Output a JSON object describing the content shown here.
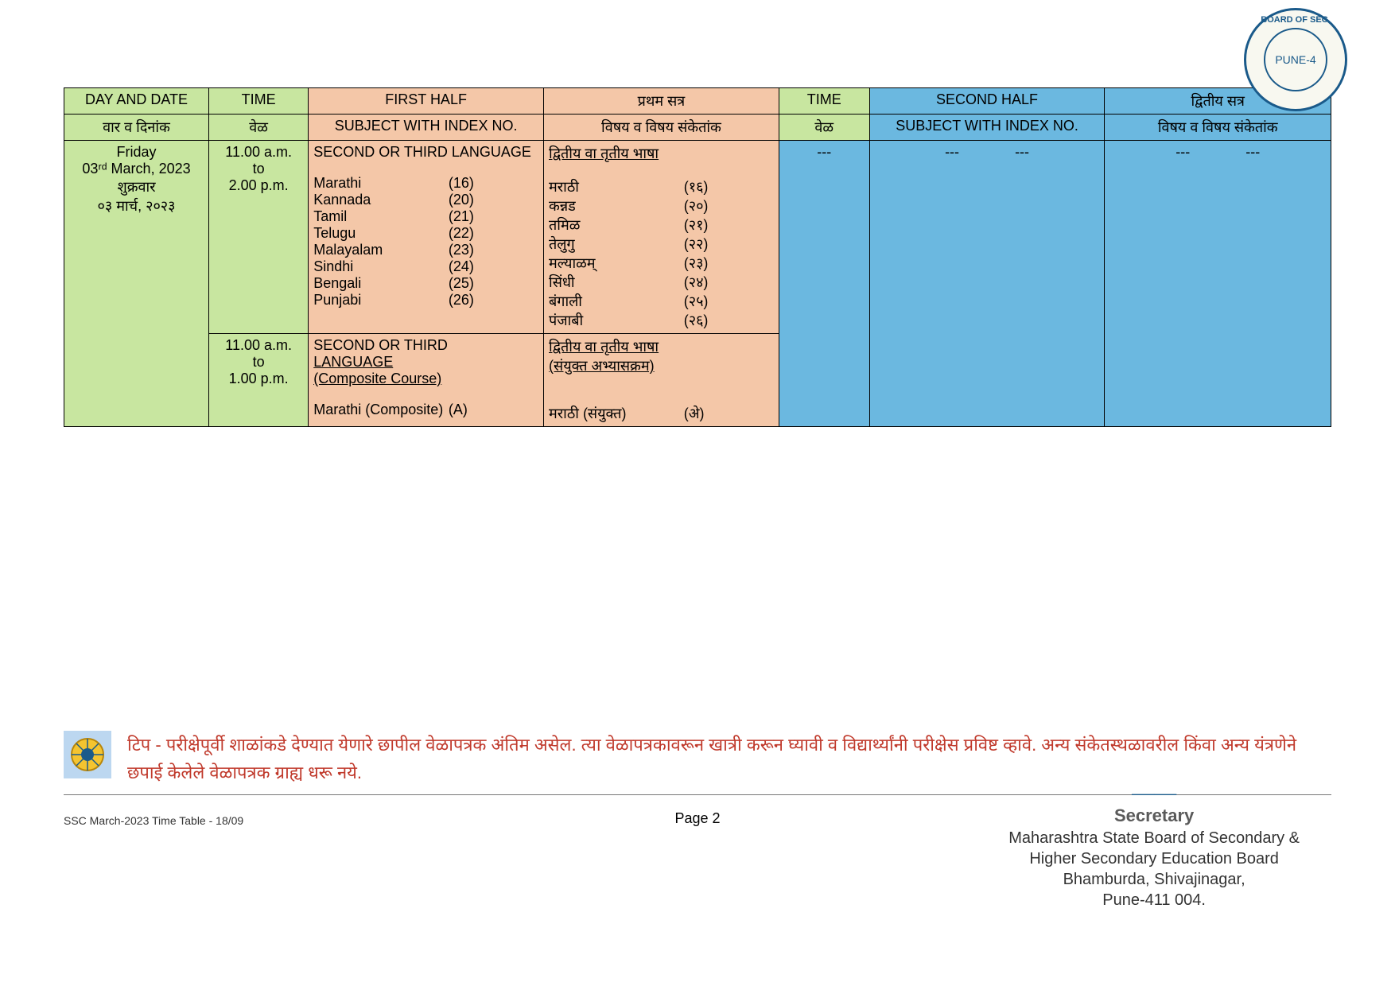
{
  "colors": {
    "green": "#c8e6a0",
    "peach": "#f4c7a8",
    "blue": "#6bb8e0",
    "note_red": "#c0392b",
    "stamp_blue": "#1a5a8a"
  },
  "stamp": {
    "outer_top": "BOARD OF SEC.",
    "inner": "PUNE-4"
  },
  "headers": {
    "day_date_en": "DAY AND DATE",
    "day_date_mr": "वार व दिनांक",
    "time_en": "TIME",
    "time_mr": "वेळ",
    "first_half_en": "FIRST HALF",
    "first_half_mr": "प्रथम सत्र",
    "subject_idx_en": "SUBJECT WITH INDEX NO.",
    "subject_idx_mr": "विषय व विषय संकेतांक",
    "second_half_en": "SECOND HALF",
    "second_half_mr": "द्वितीय सत्र"
  },
  "day": {
    "weekday_en": "Friday",
    "date_en": "03ʳᵈ March, 2023",
    "weekday_mr": "शुक्रवार",
    "date_mr": "०३ मार्च, २०२३"
  },
  "slot1": {
    "time": "11.00 a.m.\nto\n2.00 p.m.",
    "title_en": "SECOND OR THIRD LANGUAGE",
    "title_mr": "द्वितीय वा तृतीय भाषा",
    "subjects": [
      {
        "en": "Marathi",
        "idx_en": "(16)",
        "mr": "मराठी",
        "idx_mr": "(१६)"
      },
      {
        "en": "Kannada",
        "idx_en": "(20)",
        "mr": "कन्नड",
        "idx_mr": "(२०)"
      },
      {
        "en": "Tamil",
        "idx_en": "(21)",
        "mr": "तमिळ",
        "idx_mr": "(२१)"
      },
      {
        "en": "Telugu",
        "idx_en": "(22)",
        "mr": "तेलुगु",
        "idx_mr": "(२२)"
      },
      {
        "en": "Malayalam",
        "idx_en": "(23)",
        "mr": "मल्याळम्",
        "idx_mr": "(२३)"
      },
      {
        "en": "Sindhi",
        "idx_en": "(24)",
        "mr": "सिंधी",
        "idx_mr": "(२४)"
      },
      {
        "en": "Bengali",
        "idx_en": "(25)",
        "mr": "बंगाली",
        "idx_mr": "(२५)"
      },
      {
        "en": "Punjabi",
        "idx_en": "(26)",
        "mr": "पंजाबी",
        "idx_mr": "(२६)"
      }
    ]
  },
  "slot2": {
    "time": "11.00 a.m.\nto\n1.00 p.m.",
    "title_en_line1": "SECOND OR THIRD",
    "title_en_line2": "LANGUAGE",
    "title_en_line3": "(Composite Course)",
    "title_mr_line1": "द्वितीय वा तृतीय भाषा",
    "title_mr_line2": "(संयुक्त अभ्यासक्रम)",
    "subjects": [
      {
        "en": "Marathi (Composite)",
        "idx_en": "(A)",
        "mr": "मराठी (संयुक्त)",
        "idx_mr": "(अे)"
      }
    ]
  },
  "second_half_placeholder": "---",
  "note": {
    "text": "टिप - परीक्षेपूर्वी शाळांकडे देण्यात येणारे छापील वेळापत्रक अंतिम असेल. त्या वेळापत्रकावरून खात्री करून घ्यावी व विद्यार्थ्यांनी परीक्षेस प्रविष्ट व्हावे. अन्य संकेतस्थळावरील किंवा अन्य यंत्रणेने छपाई केलेले वेळापत्रक ग्राह्य धरू नये."
  },
  "footer": {
    "left": "SSC March-2023  Time Table  - 18/09",
    "center": "Page 2"
  },
  "signature": {
    "scribble": "——",
    "title": "Secretary",
    "line1": "Maharashtra State Board of Secondary &",
    "line2": "Higher Secondary Education Board",
    "line3": "Bhamburda, Shivajinagar,",
    "line4": "Pune-411 004."
  }
}
